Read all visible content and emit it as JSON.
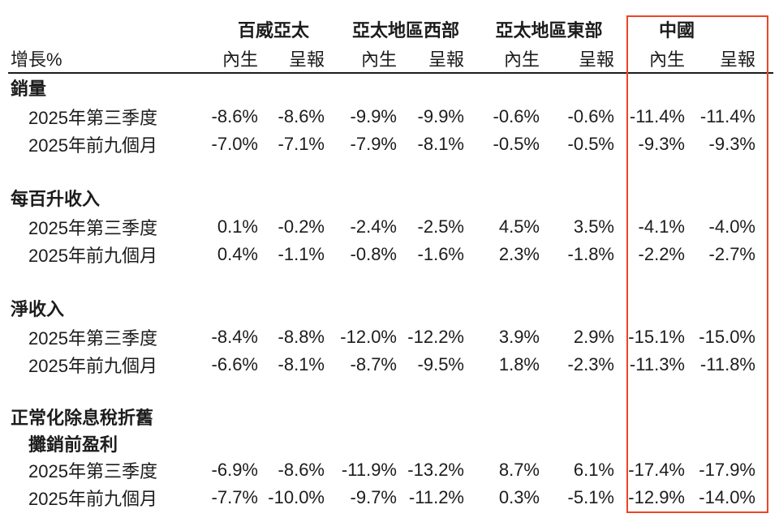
{
  "header": {
    "growth_label": "增長%",
    "sub_organic": "內生",
    "sub_reported": "呈報",
    "groups": [
      {
        "label": "百威亞太"
      },
      {
        "label": "亞太地區西部"
      },
      {
        "label": "亞太地區東部"
      },
      {
        "label": "中國",
        "highlighted": true
      }
    ]
  },
  "sections": [
    {
      "title_lines": [
        "銷量"
      ],
      "rows": [
        {
          "label": "2025年第三季度",
          "values": [
            "-8.6%",
            "-8.6%",
            "-9.9%",
            "-9.9%",
            "-0.6%",
            "-0.6%",
            "-11.4%",
            "-11.4%"
          ]
        },
        {
          "label": "2025年前九個月",
          "values": [
            "-7.0%",
            "-7.1%",
            "-7.9%",
            "-8.1%",
            "-0.5%",
            "-0.5%",
            "-9.3%",
            "-9.3%"
          ]
        }
      ]
    },
    {
      "title_lines": [
        "每百升收入"
      ],
      "rows": [
        {
          "label": "2025年第三季度",
          "values": [
            "0.1%",
            "-0.2%",
            "-2.4%",
            "-2.5%",
            "4.5%",
            "3.5%",
            "-4.1%",
            "-4.0%"
          ]
        },
        {
          "label": "2025年前九個月",
          "values": [
            "0.4%",
            "-1.1%",
            "-0.8%",
            "-1.6%",
            "2.3%",
            "-1.8%",
            "-2.2%",
            "-2.7%"
          ]
        }
      ]
    },
    {
      "title_lines": [
        "淨收入"
      ],
      "rows": [
        {
          "label": "2025年第三季度",
          "values": [
            "-8.4%",
            "-8.8%",
            "-12.0%",
            "-12.2%",
            "3.9%",
            "2.9%",
            "-15.1%",
            "-15.0%"
          ]
        },
        {
          "label": "2025年前九個月",
          "values": [
            "-6.6%",
            "-8.1%",
            "-8.7%",
            "-9.5%",
            "1.8%",
            "-2.3%",
            "-11.3%",
            "-11.8%"
          ]
        }
      ]
    },
    {
      "title_lines": [
        "正常化除息稅折舊",
        "攤銷前盈利"
      ],
      "rows": [
        {
          "label": "2025年第三季度",
          "values": [
            "-6.9%",
            "-8.6%",
            "-11.9%",
            "-13.2%",
            "8.7%",
            "6.1%",
            "-17.4%",
            "-17.9%"
          ]
        },
        {
          "label": "2025年前九個月",
          "values": [
            "-7.7%",
            "-10.0%",
            "-9.7%",
            "-11.2%",
            "0.3%",
            "-5.1%",
            "-12.9%",
            "-14.0%"
          ]
        }
      ]
    }
  ],
  "colors": {
    "highlight_border": "#ee4426",
    "text": "#1c1c1c",
    "header_rule": "#1c1c1c",
    "background": "#ffffff"
  }
}
